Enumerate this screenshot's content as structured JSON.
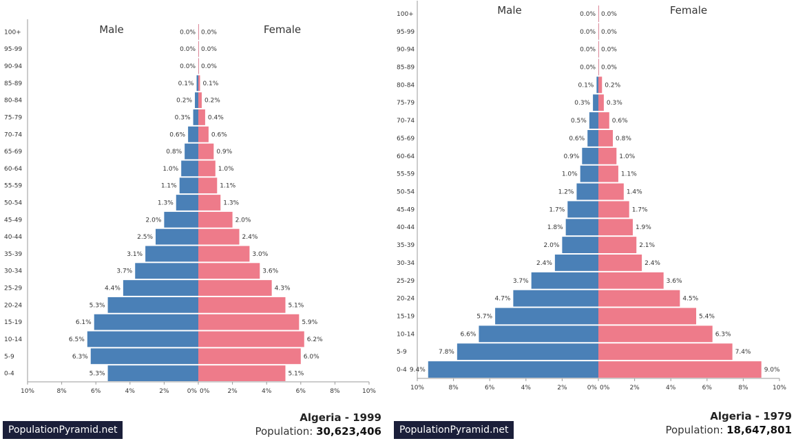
{
  "labels": {
    "male": "Male",
    "female": "Female"
  },
  "chart_data": [
    {
      "type": "bar",
      "title": "Algeria - 1999",
      "population_label": "Population:",
      "population": "30,623,406",
      "brand": "PopulationPyramid.net",
      "categories": [
        "0-4",
        "5-9",
        "10-14",
        "15-19",
        "20-24",
        "25-29",
        "30-34",
        "35-39",
        "40-44",
        "45-49",
        "50-54",
        "55-59",
        "60-64",
        "65-69",
        "70-74",
        "75-79",
        "80-84",
        "85-89",
        "90-94",
        "95-99",
        "100+"
      ],
      "series": [
        {
          "name": "Male",
          "color": "#4a80b7",
          "values": [
            5.3,
            6.3,
            6.5,
            6.1,
            5.3,
            4.4,
            3.7,
            3.1,
            2.5,
            2.0,
            1.3,
            1.1,
            1.0,
            0.8,
            0.6,
            0.3,
            0.2,
            0.1,
            0.0,
            0.0,
            0.0
          ]
        },
        {
          "name": "Female",
          "color": "#ee7b8a",
          "values": [
            5.1,
            6.0,
            6.2,
            5.9,
            5.1,
            4.3,
            3.6,
            3.0,
            2.4,
            2.0,
            1.3,
            1.1,
            1.0,
            0.9,
            0.6,
            0.4,
            0.2,
            0.1,
            0.0,
            0.0,
            0.0
          ]
        }
      ],
      "xticks": [
        "10%",
        "8%",
        "6%",
        "4%",
        "2%",
        "0%",
        "0%",
        "2%",
        "4%",
        "6%",
        "8%",
        "10%"
      ],
      "xlim": [
        -10,
        10
      ]
    },
    {
      "type": "bar",
      "title": "Algeria - 1979",
      "population_label": "Population:",
      "population": "18,647,801",
      "brand": "PopulationPyramid.net",
      "categories": [
        "0-4",
        "5-9",
        "10-14",
        "15-19",
        "20-24",
        "25-29",
        "30-34",
        "35-39",
        "40-44",
        "45-49",
        "50-54",
        "55-59",
        "60-64",
        "65-69",
        "70-74",
        "75-79",
        "80-84",
        "85-89",
        "90-94",
        "95-99",
        "100+"
      ],
      "series": [
        {
          "name": "Male",
          "color": "#4a80b7",
          "values": [
            9.4,
            7.8,
            6.6,
            5.7,
            4.7,
            3.7,
            2.4,
            2.0,
            1.8,
            1.7,
            1.2,
            1.0,
            0.9,
            0.6,
            0.5,
            0.3,
            0.1,
            0.0,
            0.0,
            0.0,
            0.0
          ]
        },
        {
          "name": "Female",
          "color": "#ee7b8a",
          "values": [
            9.0,
            7.4,
            6.3,
            5.4,
            4.5,
            3.6,
            2.4,
            2.1,
            1.9,
            1.7,
            1.4,
            1.1,
            1.0,
            0.8,
            0.6,
            0.3,
            0.2,
            0.0,
            0.0,
            0.0,
            0.0
          ]
        }
      ],
      "xticks": [
        "10%",
        "8%",
        "6%",
        "4%",
        "2%",
        "0%",
        "0%",
        "2%",
        "4%",
        "6%",
        "8%",
        "10%"
      ],
      "xlim": [
        -10,
        10
      ]
    }
  ]
}
